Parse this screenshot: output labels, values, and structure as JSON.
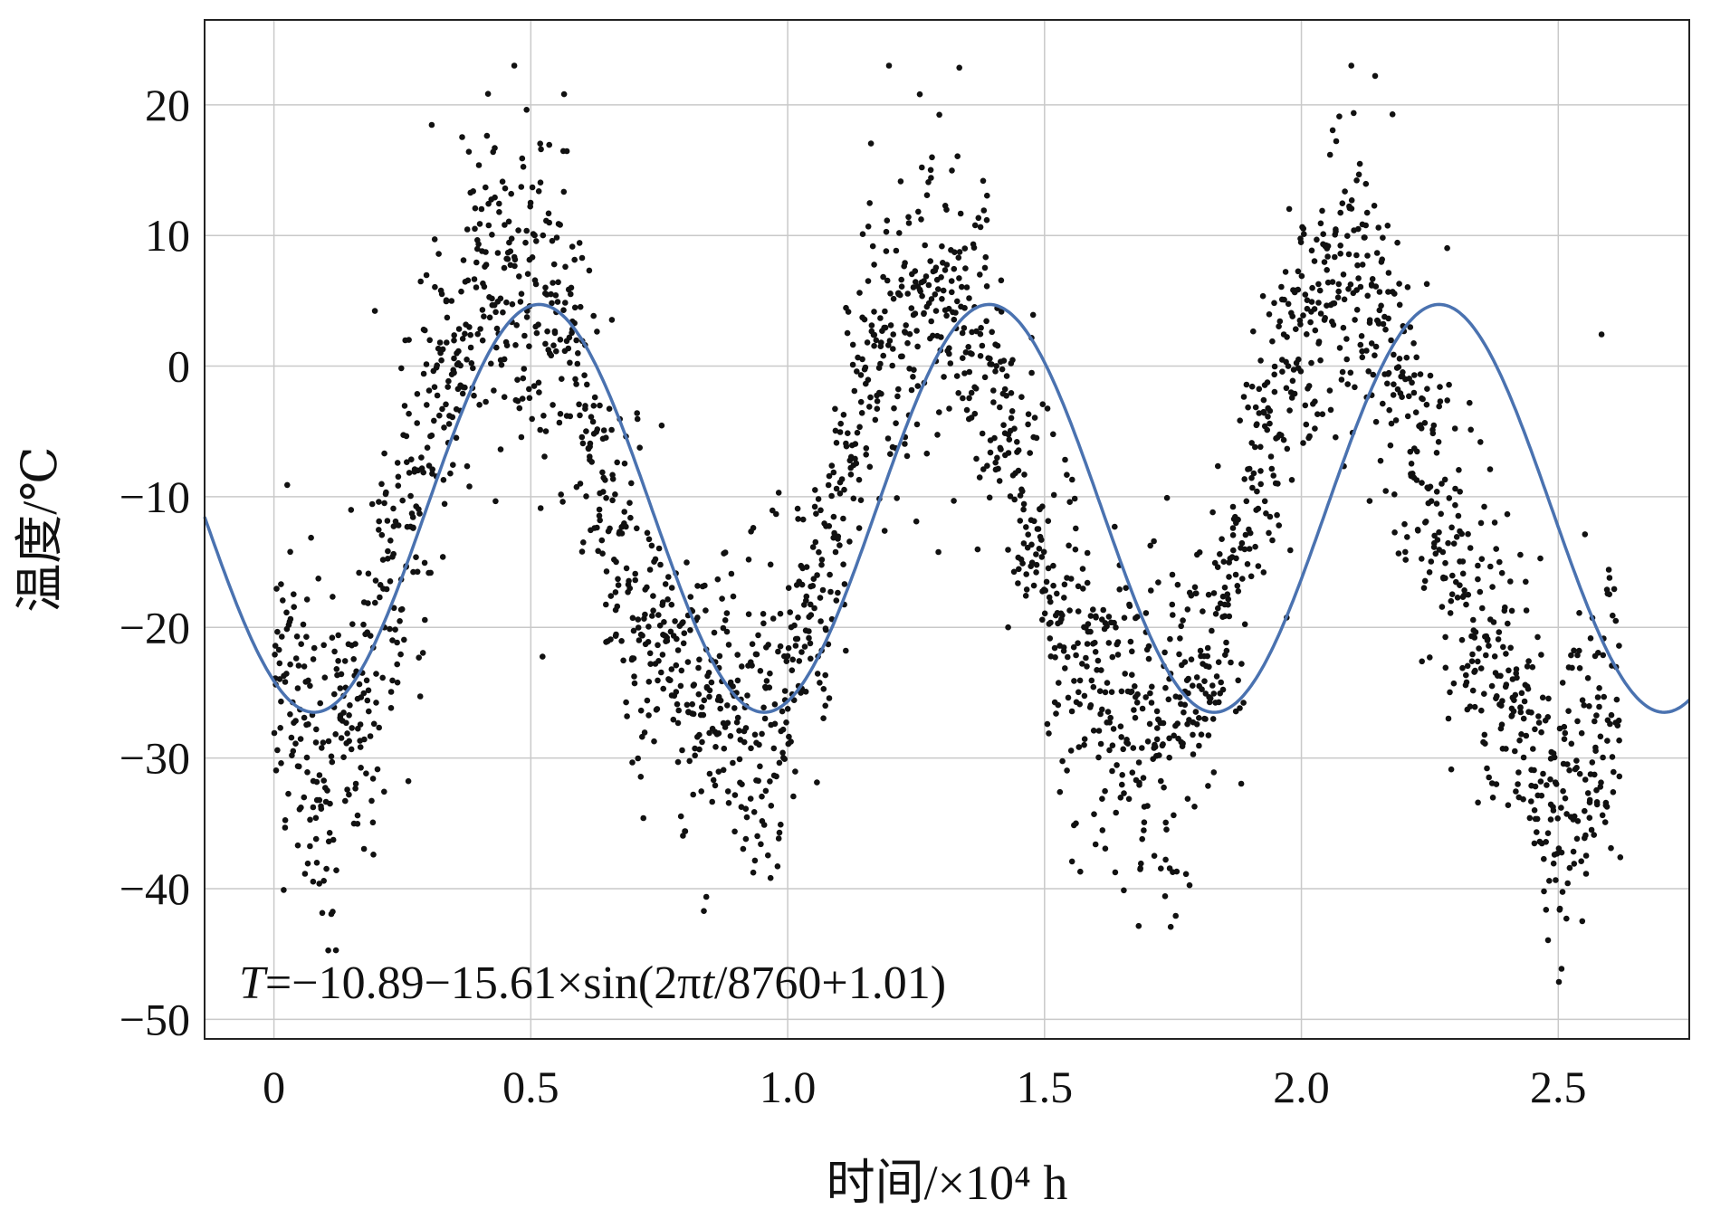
{
  "chart_data": {
    "type": "scatter",
    "title": "",
    "xlabel": "时间/×10⁴ h",
    "ylabel": "温度/℃",
    "xlim": [
      -0.135,
      2.755
    ],
    "ylim": [
      -51.5,
      26.5
    ],
    "xticks": [
      0,
      0.5,
      1.0,
      1.5,
      2.0,
      2.5
    ],
    "xtick_labels": [
      "0",
      "0.5",
      "1.0",
      "1.5",
      "2.0",
      "2.5"
    ],
    "yticks": [
      20,
      10,
      0,
      -10,
      -20,
      -30,
      -40,
      -50
    ],
    "ytick_labels": [
      "20",
      "10",
      "0",
      "−10",
      "−20",
      "−30",
      "−40",
      "−50"
    ],
    "grid": true,
    "annotation": {
      "text_parts": [
        "T",
        "=−10.89−15.61×sin(2π",
        "t",
        "/8760+1.01)"
      ],
      "anchor": "bottom-left"
    },
    "series": [
      {
        "kind": "scatter",
        "color": "#111111",
        "description_points_x_10e4h": [
          0.0,
          0.02,
          0.05,
          0.08,
          0.1,
          0.12,
          0.15,
          0.18,
          0.2,
          0.22,
          0.25,
          0.28,
          0.3,
          0.33,
          0.35,
          0.38,
          0.4,
          0.42,
          0.45,
          0.48,
          0.5,
          0.52,
          0.55,
          0.58,
          0.6,
          0.62,
          0.65,
          0.68,
          0.7,
          0.72,
          0.75,
          0.78,
          0.8,
          0.82,
          0.85,
          0.88,
          0.9,
          0.92,
          0.95,
          0.98,
          1.0,
          1.02,
          1.05,
          1.08,
          1.1,
          1.12,
          1.15,
          1.18,
          1.2,
          1.22,
          1.25,
          1.28,
          1.3,
          1.33,
          1.35,
          1.38,
          1.4,
          1.42,
          1.45,
          1.48,
          1.5,
          1.52,
          1.55,
          1.58,
          1.6,
          1.62,
          1.65,
          1.68,
          1.7,
          1.72,
          1.75,
          1.78,
          1.8,
          1.82,
          1.85,
          1.88,
          1.9,
          1.92,
          1.95,
          1.98,
          2.0,
          2.02,
          2.05,
          2.08,
          2.1,
          2.12,
          2.15,
          2.18,
          2.2,
          2.22,
          2.25,
          2.28,
          2.3,
          2.32,
          2.35,
          2.38,
          2.4,
          2.42,
          2.45,
          2.48,
          2.5,
          2.52,
          2.55,
          2.58,
          2.6,
          2.62
        ],
        "description_points_y_mean": [
          -24,
          -22,
          -28,
          -31,
          -33,
          -30,
          -27,
          -24,
          -20,
          -17,
          -14,
          -9,
          -6,
          -3,
          0,
          2,
          5,
          6,
          7,
          7,
          6,
          6,
          4,
          2,
          -2,
          -6,
          -11,
          -15,
          -18,
          -21,
          -22,
          -24,
          -26,
          -26,
          -27,
          -27,
          -27,
          -28,
          -27,
          -26,
          -25,
          -23,
          -19,
          -15,
          -10,
          -6,
          -2,
          1,
          3,
          4,
          5,
          5,
          4,
          3,
          2,
          1,
          -2,
          -6,
          -10,
          -14,
          -18,
          -20,
          -22,
          -23,
          -24,
          -26,
          -26,
          -27,
          -28,
          -28,
          -27,
          -26,
          -24,
          -22,
          -18,
          -14,
          -10,
          -6,
          -2,
          1,
          3,
          4,
          5,
          5,
          5,
          4,
          3,
          1,
          -2,
          -5,
          -9,
          -13,
          -16,
          -19,
          -21,
          -23,
          -26,
          -28,
          -30,
          -33,
          -35,
          -32,
          -30,
          -28,
          -27,
          -26
        ]
      },
      {
        "kind": "fit-line",
        "color": "#4a72b0",
        "formula": {
          "a": -10.89,
          "b": -15.61,
          "period_h": 8760,
          "phase": 1.01
        }
      }
    ]
  }
}
